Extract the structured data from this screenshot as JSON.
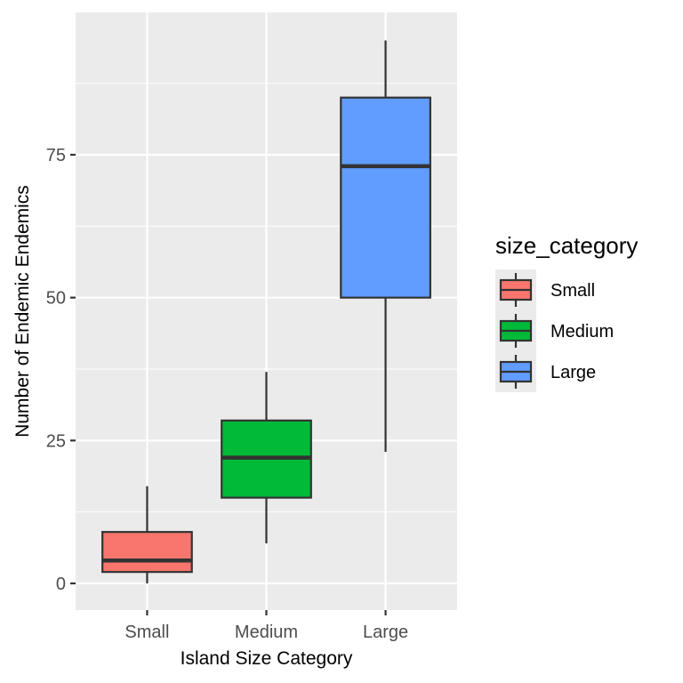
{
  "chart_data": {
    "type": "box",
    "title": "",
    "xlabel": "Island Size Category",
    "ylabel": "Number of Endemic Endemics",
    "categories": [
      "Small",
      "Medium",
      "Large"
    ],
    "ylim": [
      -4,
      100
    ],
    "yticks": [
      0,
      25,
      50,
      75
    ],
    "grid": true,
    "legend": {
      "title": "size_category",
      "placement": "right"
    },
    "series": [
      {
        "name": "Small",
        "color": "#F8766D",
        "min": 0,
        "q1": 2,
        "median": 4,
        "q3": 9,
        "max": 17
      },
      {
        "name": "Medium",
        "color": "#00BA38",
        "min": 7,
        "q1": 15,
        "median": 22,
        "q3": 28.5,
        "max": 37
      },
      {
        "name": "Large",
        "color": "#619CFF",
        "min": 23,
        "q1": 50,
        "median": 73,
        "q3": 85,
        "max": 95
      }
    ]
  }
}
